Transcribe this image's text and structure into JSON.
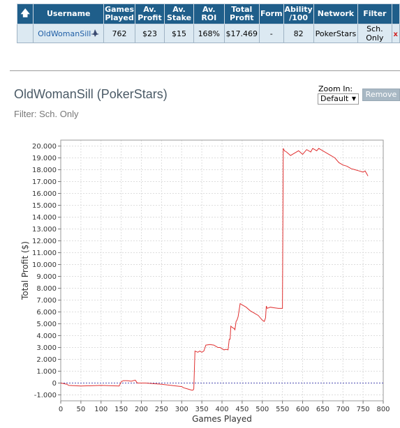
{
  "table": {
    "headers": {
      "username": "Username",
      "games_played": [
        "Games",
        "Played"
      ],
      "av_profit": [
        "Av.",
        "Profit"
      ],
      "av_stake": [
        "Av.",
        "Stake"
      ],
      "av_roi": "Av. ROI",
      "total_profit": [
        "Total",
        "Profit"
      ],
      "form": "Form",
      "ability": [
        "Ability",
        "/100"
      ],
      "network": "Network",
      "filter": "Filter"
    },
    "row": {
      "username": "OldWomanSill",
      "games_played": "762",
      "av_profit": "$23",
      "av_stake": "$15",
      "av_roi": "168%",
      "total_profit": "$17.469",
      "form": "-",
      "ability": "82",
      "network": "PokerStars",
      "filter": "Sch. Only",
      "delete": "x"
    }
  },
  "header": {
    "title": "OldWomanSill (PokerStars)",
    "filter_text": "Filter: Sch. Only"
  },
  "zoom": {
    "label": "Zoom In:",
    "value": "Default"
  },
  "remove_label": "Remove",
  "colors": {
    "header_bg": "#1f5e8a",
    "row_bg": "#dce9f2",
    "line": "#e03030",
    "zero_line": "#4a4ab0"
  },
  "chart_data": {
    "type": "line",
    "xlabel": "Games Played",
    "ylabel": "Total Profit ($)",
    "xlim": [
      0,
      800
    ],
    "ylim": [
      -1500,
      20500
    ],
    "x_ticks": [
      0,
      50,
      100,
      150,
      200,
      250,
      300,
      350,
      400,
      450,
      500,
      550,
      600,
      650,
      700,
      750,
      800
    ],
    "y_ticks": [
      -1000,
      0,
      1000,
      2000,
      3000,
      4000,
      5000,
      6000,
      7000,
      8000,
      9000,
      10000,
      11000,
      12000,
      13000,
      14000,
      15000,
      16000,
      17000,
      18000,
      19000,
      20000
    ],
    "y_tick_labels": [
      "-1.000",
      "0",
      "1.000",
      "2.000",
      "3.000",
      "4.000",
      "5.000",
      "6.000",
      "7.000",
      "8.000",
      "9.000",
      "10.000",
      "11.000",
      "12.000",
      "13.000",
      "14.000",
      "15.000",
      "16.000",
      "17.000",
      "18.000",
      "19.000",
      "20.000"
    ],
    "grid": true,
    "reference_line": 0,
    "series": [
      {
        "x": [
          0,
          15,
          20,
          50,
          100,
          145,
          150,
          155,
          165,
          175,
          185,
          190,
          210,
          250,
          300,
          305,
          315,
          325,
          328,
          330,
          333,
          340,
          345,
          350,
          355,
          360,
          370,
          380,
          385,
          390,
          395,
          400,
          405,
          410,
          415,
          418,
          420,
          422,
          425,
          430,
          432,
          435,
          437,
          440,
          445,
          450,
          460,
          470,
          480,
          490,
          500,
          505,
          508,
          510,
          512,
          520,
          530,
          540,
          550,
          552,
          555,
          560,
          570,
          580,
          590,
          600,
          610,
          620,
          625,
          630,
          635,
          640,
          650,
          660,
          670,
          680,
          690,
          700,
          710,
          720,
          730,
          740,
          750,
          755,
          760,
          762
        ],
        "y": [
          0,
          -100,
          -200,
          -250,
          -200,
          -250,
          100,
          200,
          200,
          150,
          250,
          0,
          0,
          -100,
          -300,
          -400,
          -500,
          -600,
          -600,
          -500,
          2700,
          2600,
          2700,
          2600,
          2700,
          3200,
          3250,
          3200,
          3100,
          3000,
          3000,
          2900,
          2800,
          2850,
          2800,
          3700,
          3700,
          4800,
          4700,
          4600,
          4500,
          5200,
          5300,
          5600,
          6700,
          6600,
          6400,
          6100,
          5900,
          5700,
          5300,
          5200,
          5500,
          6500,
          6300,
          6400,
          6350,
          6300,
          6300,
          19800,
          19600,
          19500,
          19200,
          19400,
          19600,
          19300,
          19700,
          19500,
          19800,
          19700,
          19600,
          19800,
          19600,
          19400,
          19200,
          19000,
          18600,
          18400,
          18300,
          18100,
          18000,
          17900,
          17800,
          17900,
          17600,
          17469
        ]
      }
    ]
  }
}
